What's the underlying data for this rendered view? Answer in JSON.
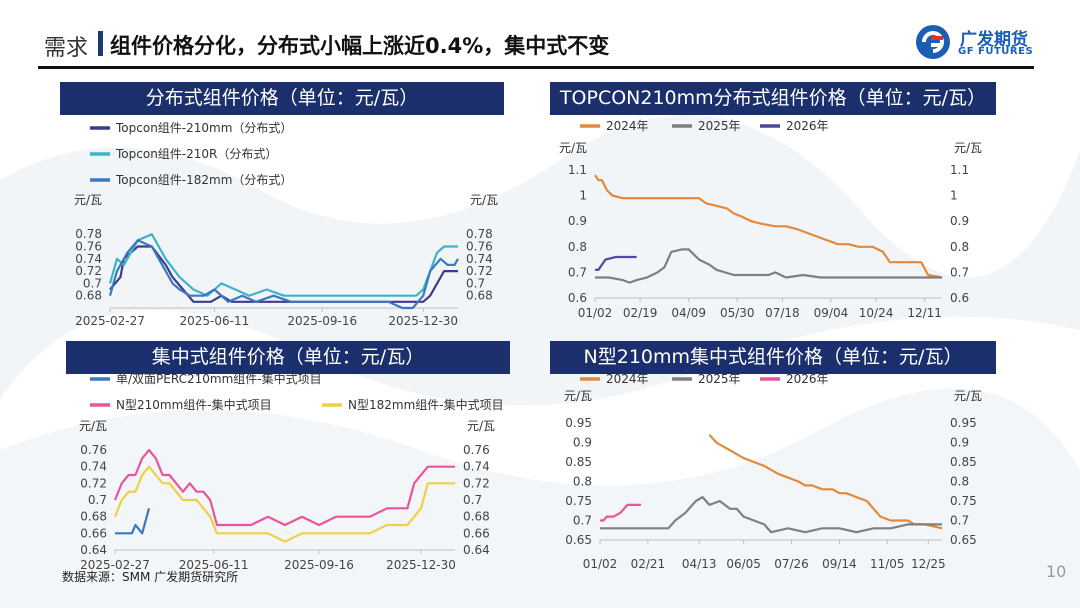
{
  "header": {
    "section": "需求",
    "title": "组件价格分化，分布式小幅上涨近0.4%，集中式不变",
    "logo_cn": "广发期货",
    "logo_en": "GF FUTURES"
  },
  "footer": {
    "source": "数据来源：SMM 广发期货研究所",
    "page": "10"
  },
  "colors": {
    "navy": "#1a2f6b",
    "orange": "#e5883a",
    "gray": "#7f7f7f",
    "purple": "#4a4aa0",
    "pink": "#e8559c"
  },
  "chart_data": [
    {
      "id": "c1",
      "type": "line",
      "title": "分布式组件价格（单位：元/瓦）",
      "unit_left": "元/瓦",
      "unit_right": "元/瓦",
      "ylim": [
        0.66,
        0.79
      ],
      "yticks": [
        0.68,
        0.7,
        0.72,
        0.74,
        0.76,
        0.78
      ],
      "yticklabels": [
        "0.68",
        "0.7",
        "0.72",
        "0.74",
        "0.76",
        "0.78"
      ],
      "xlim": [
        0,
        1
      ],
      "xtick_pos": [
        0.0,
        0.3,
        0.61,
        0.9
      ],
      "xticklabels": [
        "2025-02-27",
        "2025-06-11",
        "2025-09-16",
        "2025-12-30"
      ],
      "series": [
        {
          "name": "Topcon组件-210mm（分布式）",
          "color": "#3c3c8c",
          "x": [
            0,
            0.03,
            0.04,
            0.08,
            0.12,
            0.16,
            0.18,
            0.21,
            0.24,
            0.26,
            0.29,
            0.32,
            0.35,
            0.4,
            0.45,
            0.5,
            0.55,
            0.6,
            0.65,
            0.7,
            0.75,
            0.8,
            0.85,
            0.88,
            0.9,
            0.92,
            0.94,
            0.96,
            0.98,
            1.0
          ],
          "y": [
            0.69,
            0.71,
            0.74,
            0.76,
            0.76,
            0.73,
            0.71,
            0.69,
            0.67,
            0.67,
            0.67,
            0.68,
            0.67,
            0.67,
            0.67,
            0.67,
            0.67,
            0.67,
            0.67,
            0.67,
            0.67,
            0.67,
            0.67,
            0.67,
            0.67,
            0.68,
            0.7,
            0.72,
            0.72,
            0.72
          ]
        },
        {
          "name": "Topcon组件-210R（分布式）",
          "color": "#3cb4c8",
          "x": [
            0,
            0.02,
            0.04,
            0.08,
            0.12,
            0.16,
            0.2,
            0.24,
            0.28,
            0.32,
            0.36,
            0.4,
            0.45,
            0.5,
            0.55,
            0.6,
            0.65,
            0.7,
            0.75,
            0.8,
            0.85,
            0.88,
            0.9,
            0.92,
            0.94,
            0.96,
            1.0
          ],
          "y": [
            0.7,
            0.74,
            0.73,
            0.77,
            0.78,
            0.74,
            0.71,
            0.69,
            0.68,
            0.7,
            0.69,
            0.68,
            0.69,
            0.68,
            0.68,
            0.68,
            0.68,
            0.68,
            0.68,
            0.68,
            0.68,
            0.68,
            0.69,
            0.72,
            0.75,
            0.76,
            0.76
          ]
        },
        {
          "name": "Topcon组件-182mm（分布式）",
          "color": "#3a78c0",
          "x": [
            0,
            0.02,
            0.05,
            0.08,
            0.12,
            0.15,
            0.18,
            0.2,
            0.23,
            0.27,
            0.3,
            0.34,
            0.38,
            0.42,
            0.47,
            0.52,
            0.57,
            0.62,
            0.67,
            0.72,
            0.76,
            0.8,
            0.84,
            0.87,
            0.9,
            0.92,
            0.95,
            0.97,
            0.99,
            1.0
          ],
          "y": [
            0.68,
            0.72,
            0.75,
            0.77,
            0.76,
            0.73,
            0.7,
            0.69,
            0.68,
            0.68,
            0.69,
            0.67,
            0.68,
            0.67,
            0.68,
            0.67,
            0.67,
            0.67,
            0.67,
            0.67,
            0.67,
            0.67,
            0.66,
            0.66,
            0.68,
            0.72,
            0.74,
            0.73,
            0.73,
            0.74
          ]
        }
      ]
    },
    {
      "id": "c2",
      "type": "line",
      "title": "TOPCON210mm分布式组件价格（单位：元/瓦）",
      "unit_left": "元/瓦",
      "unit_right": "元/瓦",
      "ylim": [
        0.6,
        1.1
      ],
      "yticks": [
        0.6,
        0.7,
        0.8,
        0.9,
        1.0,
        1.1
      ],
      "yticklabels": [
        "0.6",
        "0.7",
        "0.8",
        "0.9",
        "1",
        "1.1"
      ],
      "xlim": [
        0,
        1
      ],
      "xtick_pos": [
        0.0,
        0.13,
        0.27,
        0.41,
        0.54,
        0.68,
        0.81,
        0.95
      ],
      "xticklabels": [
        "01/02",
        "02/19",
        "04/09",
        "05/30",
        "07/18",
        "09/04",
        "10/24",
        "12/11"
      ],
      "series": [
        {
          "name": "2024年",
          "color": "#e5883a",
          "x": [
            0,
            0.01,
            0.02,
            0.035,
            0.05,
            0.08,
            0.12,
            0.2,
            0.3,
            0.32,
            0.35,
            0.38,
            0.4,
            0.42,
            0.45,
            0.48,
            0.52,
            0.55,
            0.58,
            0.62,
            0.66,
            0.68,
            0.7,
            0.73,
            0.76,
            0.8,
            0.83,
            0.85,
            0.88,
            0.92,
            0.94,
            0.96,
            1.0
          ],
          "y": [
            1.08,
            1.06,
            1.06,
            1.02,
            1.0,
            0.99,
            0.99,
            0.99,
            0.99,
            0.97,
            0.96,
            0.95,
            0.93,
            0.92,
            0.9,
            0.89,
            0.88,
            0.88,
            0.87,
            0.85,
            0.83,
            0.82,
            0.81,
            0.81,
            0.8,
            0.8,
            0.78,
            0.74,
            0.74,
            0.74,
            0.74,
            0.69,
            0.68
          ]
        },
        {
          "name": "2025年",
          "color": "#7f7f7f",
          "x": [
            0,
            0.04,
            0.08,
            0.1,
            0.12,
            0.15,
            0.18,
            0.2,
            0.22,
            0.25,
            0.27,
            0.3,
            0.33,
            0.35,
            0.4,
            0.45,
            0.5,
            0.52,
            0.55,
            0.6,
            0.65,
            0.7,
            1.0
          ],
          "y": [
            0.68,
            0.68,
            0.67,
            0.66,
            0.67,
            0.68,
            0.7,
            0.72,
            0.78,
            0.79,
            0.79,
            0.75,
            0.73,
            0.71,
            0.69,
            0.69,
            0.69,
            0.7,
            0.68,
            0.69,
            0.68,
            0.68,
            0.68
          ]
        },
        {
          "name": "2026年",
          "color": "#4a4aa0",
          "x": [
            0,
            0.01,
            0.03,
            0.06,
            0.08,
            0.1,
            0.12
          ],
          "y": [
            0.71,
            0.71,
            0.75,
            0.76,
            0.76,
            0.76,
            0.76
          ]
        }
      ]
    },
    {
      "id": "c3",
      "type": "line",
      "title": "集中式组件价格（单位：元/瓦）",
      "unit_left": "元/瓦",
      "unit_right": "元/瓦",
      "ylim": [
        0.64,
        0.76
      ],
      "yticks": [
        0.64,
        0.66,
        0.68,
        0.7,
        0.72,
        0.74,
        0.76
      ],
      "yticklabels": [
        "0.64",
        "0.66",
        "0.68",
        "0.7",
        "0.72",
        "0.74",
        "0.76"
      ],
      "xlim": [
        0,
        1
      ],
      "xtick_pos": [
        0.0,
        0.29,
        0.6,
        0.9
      ],
      "xticklabels": [
        "2025-02-27",
        "2025-06-11",
        "2025-09-16",
        "2025-12-30"
      ],
      "series": [
        {
          "name": "单/双面PERC210mm组件-集中式项目",
          "color": "#3a78c0",
          "x": [
            0,
            0.03,
            0.05,
            0.06,
            0.08,
            0.1
          ],
          "y": [
            0.66,
            0.66,
            0.66,
            0.67,
            0.66,
            0.69
          ]
        },
        {
          "name": "N型210mm组件-集中式项目",
          "color": "#e8559c",
          "x": [
            0,
            0.02,
            0.04,
            0.06,
            0.08,
            0.1,
            0.12,
            0.14,
            0.16,
            0.18,
            0.2,
            0.22,
            0.24,
            0.26,
            0.28,
            0.3,
            0.34,
            0.4,
            0.45,
            0.5,
            0.55,
            0.6,
            0.65,
            0.7,
            0.75,
            0.8,
            0.84,
            0.86,
            0.88,
            0.9,
            0.92,
            0.94,
            1.0
          ],
          "y": [
            0.7,
            0.72,
            0.73,
            0.73,
            0.75,
            0.76,
            0.75,
            0.73,
            0.73,
            0.72,
            0.71,
            0.72,
            0.71,
            0.71,
            0.7,
            0.67,
            0.67,
            0.67,
            0.68,
            0.67,
            0.68,
            0.67,
            0.68,
            0.68,
            0.68,
            0.69,
            0.69,
            0.69,
            0.72,
            0.73,
            0.74,
            0.74,
            0.74
          ]
        },
        {
          "name": "N型182mm组件-集中式项目",
          "color": "#f0d043",
          "x": [
            0,
            0.02,
            0.04,
            0.06,
            0.08,
            0.1,
            0.12,
            0.14,
            0.16,
            0.18,
            0.2,
            0.22,
            0.24,
            0.26,
            0.28,
            0.3,
            0.34,
            0.4,
            0.45,
            0.5,
            0.55,
            0.6,
            0.65,
            0.7,
            0.75,
            0.8,
            0.84,
            0.86,
            0.88,
            0.9,
            0.92,
            0.94,
            1.0
          ],
          "y": [
            0.68,
            0.7,
            0.71,
            0.71,
            0.73,
            0.74,
            0.73,
            0.72,
            0.72,
            0.71,
            0.7,
            0.7,
            0.7,
            0.69,
            0.68,
            0.66,
            0.66,
            0.66,
            0.66,
            0.65,
            0.66,
            0.66,
            0.66,
            0.66,
            0.66,
            0.67,
            0.67,
            0.67,
            0.68,
            0.69,
            0.72,
            0.72,
            0.72
          ]
        }
      ]
    },
    {
      "id": "c4",
      "type": "line",
      "title": "N型210mm集中式组件价格（单位：元/瓦）",
      "unit_left": "元/瓦",
      "unit_right": "元/瓦",
      "ylim": [
        0.65,
        0.95
      ],
      "yticks": [
        0.65,
        0.7,
        0.75,
        0.8,
        0.85,
        0.9,
        0.95
      ],
      "yticklabels": [
        "0.65",
        "0.7",
        "0.75",
        "0.8",
        "0.85",
        "0.9",
        "0.95"
      ],
      "xlim": [
        0,
        1
      ],
      "xtick_pos": [
        0.0,
        0.14,
        0.29,
        0.42,
        0.56,
        0.7,
        0.84,
        0.96
      ],
      "xticklabels": [
        "01/02",
        "02/21",
        "04/13",
        "06/05",
        "07/26",
        "09/14",
        "11/05",
        "12/25"
      ],
      "series": [
        {
          "name": "2024年",
          "color": "#e5883a",
          "x": [
            0.32,
            0.34,
            0.36,
            0.38,
            0.4,
            0.42,
            0.45,
            0.48,
            0.5,
            0.52,
            0.55,
            0.58,
            0.6,
            0.62,
            0.65,
            0.68,
            0.7,
            0.72,
            0.75,
            0.78,
            0.8,
            0.82,
            0.85,
            0.88,
            0.9,
            0.92,
            0.95,
            1.0
          ],
          "y": [
            0.92,
            0.9,
            0.89,
            0.88,
            0.87,
            0.86,
            0.85,
            0.84,
            0.83,
            0.82,
            0.81,
            0.8,
            0.79,
            0.79,
            0.78,
            0.78,
            0.77,
            0.77,
            0.76,
            0.75,
            0.73,
            0.71,
            0.7,
            0.7,
            0.7,
            0.69,
            0.69,
            0.68
          ]
        },
        {
          "name": "2025年",
          "color": "#7f7f7f",
          "x": [
            0,
            0.05,
            0.1,
            0.15,
            0.2,
            0.22,
            0.25,
            0.28,
            0.3,
            0.32,
            0.35,
            0.38,
            0.4,
            0.42,
            0.45,
            0.48,
            0.5,
            0.55,
            0.6,
            0.65,
            0.7,
            0.75,
            0.8,
            0.85,
            0.9,
            1.0
          ],
          "y": [
            0.68,
            0.68,
            0.68,
            0.68,
            0.68,
            0.7,
            0.72,
            0.75,
            0.76,
            0.74,
            0.75,
            0.73,
            0.73,
            0.71,
            0.7,
            0.69,
            0.67,
            0.68,
            0.67,
            0.68,
            0.68,
            0.67,
            0.68,
            0.68,
            0.69,
            0.69
          ]
        },
        {
          "name": "2026年",
          "color": "#e8559c",
          "x": [
            0,
            0.01,
            0.02,
            0.04,
            0.06,
            0.08,
            0.1,
            0.12
          ],
          "y": [
            0.7,
            0.7,
            0.71,
            0.71,
            0.72,
            0.74,
            0.74,
            0.74
          ]
        }
      ]
    }
  ]
}
